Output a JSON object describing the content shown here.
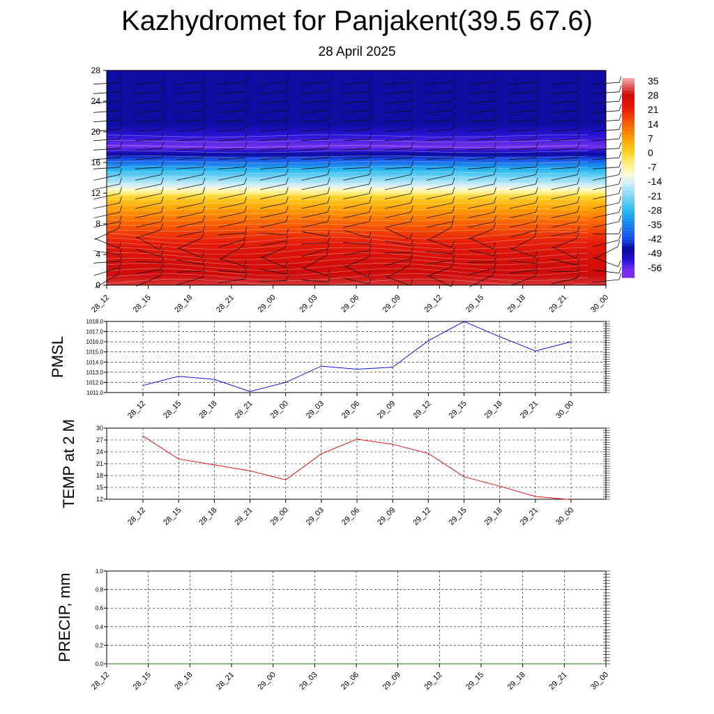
{
  "title": "Kazhydromet for Panjakent(39.5 67.6)",
  "subtitle": "28 April 2025",
  "time_labels": [
    "28_12",
    "28_15",
    "28_18",
    "28_21",
    "29_00",
    "29_03",
    "29_06",
    "29_09",
    "29_12",
    "29_15",
    "29_18",
    "29_21",
    "30_00"
  ],
  "colors": {
    "pmsl_line": "#1010e0",
    "temp_line": "#e01010",
    "precip_line": "#1a7a1a",
    "grid": "#000000"
  },
  "chart_data": [
    {
      "type": "heatmap",
      "name": "temperature-cross-section",
      "x": [
        "28_12",
        "28_15",
        "28_18",
        "28_21",
        "29_00",
        "29_03",
        "29_06",
        "29_09",
        "29_12",
        "29_15",
        "29_18",
        "29_21",
        "30_00"
      ],
      "y_ticks": [
        "0",
        "4",
        "8",
        "12",
        "16",
        "20",
        "24",
        "28"
      ],
      "ylim": [
        0,
        28
      ],
      "vertical_profile": [
        {
          "y": 0,
          "value": 30
        },
        {
          "y": 2,
          "value": 27
        },
        {
          "y": 4,
          "value": 25
        },
        {
          "y": 6,
          "value": 20
        },
        {
          "y": 8,
          "value": 14
        },
        {
          "y": 10,
          "value": 7
        },
        {
          "y": 11.5,
          "value": 0
        },
        {
          "y": 12.5,
          "value": -10
        },
        {
          "y": 13.5,
          "value": -18
        },
        {
          "y": 15,
          "value": -28
        },
        {
          "y": 16.5,
          "value": -42
        },
        {
          "y": 18,
          "value": -56
        },
        {
          "y": 19.5,
          "value": -52
        },
        {
          "y": 21,
          "value": -47
        },
        {
          "y": 28,
          "value": -47
        }
      ],
      "colorbar_labels": [
        "35",
        "28",
        "21",
        "14",
        "7",
        "0",
        "-7",
        "-14",
        "-21",
        "-28",
        "-35",
        "-42",
        "-49",
        "-56"
      ],
      "wind_barbs": true
    },
    {
      "type": "line",
      "name": "pmsl",
      "ylabel": "PMSL",
      "x": [
        "28_12",
        "28_15",
        "28_18",
        "28_21",
        "29_00",
        "29_03",
        "29_06",
        "29_09",
        "29_12",
        "29_15",
        "29_18",
        "29_21",
        "30_00"
      ],
      "values": [
        1011.7,
        1012.6,
        1012.3,
        1011.1,
        1012.0,
        1013.6,
        1013.3,
        1013.5,
        1016.1,
        1018.0,
        1016.5,
        1015.1,
        1016.0
      ],
      "ylim": [
        1011.0,
        1018.0
      ],
      "y_ticks": [
        "1011.0",
        "1012.0",
        "1013.0",
        "1014.0",
        "1015.0",
        "1016.0",
        "1017.0",
        "1018.0"
      ],
      "grid": true
    },
    {
      "type": "line",
      "name": "temp-2m",
      "ylabel": "TEMP at 2 M",
      "x": [
        "28_12",
        "28_15",
        "28_18",
        "28_21",
        "29_00",
        "29_03",
        "29_06",
        "29_09",
        "29_12",
        "29_15",
        "29_18",
        "29_21",
        "30_00"
      ],
      "values": [
        28.0,
        22.2,
        20.7,
        19.2,
        16.9,
        23.5,
        27.2,
        25.9,
        23.6,
        17.7,
        15.3,
        12.7,
        11.9
      ],
      "ylim": [
        12,
        30
      ],
      "y_ticks": [
        "12",
        "15",
        "18",
        "21",
        "24",
        "27",
        "30"
      ],
      "grid": true
    },
    {
      "type": "line",
      "name": "precip",
      "ylabel": "PRECIP, mm",
      "x": [
        "28_12",
        "28_15",
        "28_18",
        "28_21",
        "29_00",
        "29_03",
        "29_06",
        "29_09",
        "29_12",
        "29_15",
        "29_18",
        "29_21",
        "30_00"
      ],
      "values": [
        0,
        0,
        0,
        0,
        0,
        0,
        0,
        0,
        0,
        0,
        0,
        0,
        0
      ],
      "ylim": [
        0.0,
        1.0
      ],
      "y_ticks": [
        "0.0",
        "0.2",
        "0.4",
        "0.6",
        "0.8",
        "1.0"
      ],
      "grid": true
    }
  ]
}
